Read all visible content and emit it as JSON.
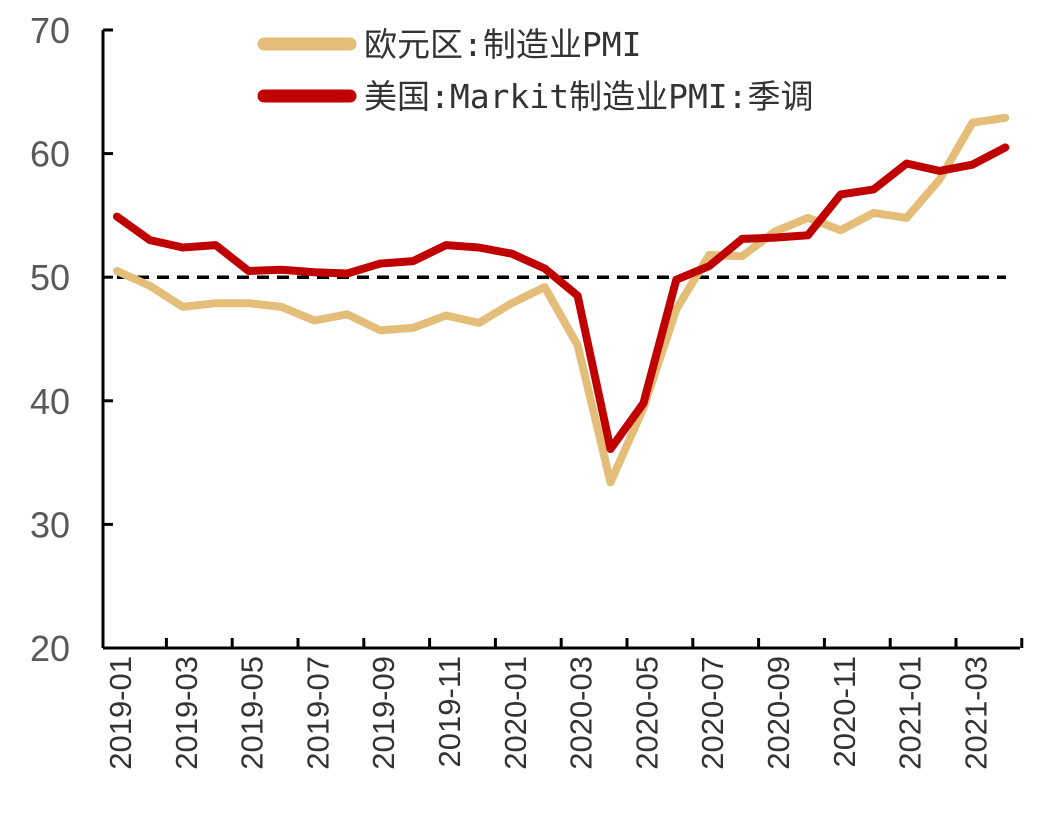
{
  "chart_data": {
    "type": "line",
    "title": "",
    "xlabel": "",
    "ylabel": "",
    "ylim": [
      20,
      70
    ],
    "yticks": [
      20,
      30,
      40,
      50,
      60,
      70
    ],
    "reference_line": {
      "value": 50,
      "style": "dashed",
      "color": "#000000"
    },
    "x": [
      "2019-01",
      "2019-02",
      "2019-03",
      "2019-04",
      "2019-05",
      "2019-06",
      "2019-07",
      "2019-08",
      "2019-09",
      "2019-10",
      "2019-11",
      "2019-12",
      "2020-01",
      "2020-02",
      "2020-03",
      "2020-04",
      "2020-05",
      "2020-06",
      "2020-07",
      "2020-08",
      "2020-09",
      "2020-10",
      "2020-11",
      "2020-12",
      "2021-01",
      "2021-02",
      "2021-03",
      "2021-04"
    ],
    "xtick_labels": [
      "2019-01",
      "2019-03",
      "2019-05",
      "2019-07",
      "2019-09",
      "2019-11",
      "2020-01",
      "2020-03",
      "2020-05",
      "2020-07",
      "2020-09",
      "2020-11",
      "2021-01",
      "2021-03"
    ],
    "series": [
      {
        "name": "欧元区:制造业PMI",
        "color": "#E4BE78",
        "values": [
          50.5,
          49.3,
          47.6,
          47.9,
          47.9,
          47.6,
          46.5,
          47.0,
          45.7,
          45.9,
          46.9,
          46.3,
          47.9,
          49.2,
          44.5,
          33.4,
          39.4,
          47.4,
          51.8,
          51.7,
          53.7,
          54.8,
          53.8,
          55.2,
          54.8,
          57.9,
          62.5,
          62.9
        ]
      },
      {
        "name": "美国:Markit制造业PMI:季调",
        "color": "#C00000",
        "values": [
          54.9,
          53.0,
          52.4,
          52.6,
          50.5,
          50.6,
          50.4,
          50.3,
          51.1,
          51.3,
          52.6,
          52.4,
          51.9,
          50.7,
          48.5,
          36.1,
          39.8,
          49.8,
          50.9,
          53.1,
          53.2,
          53.4,
          56.7,
          57.1,
          59.2,
          58.6,
          59.1,
          60.5
        ]
      }
    ]
  }
}
